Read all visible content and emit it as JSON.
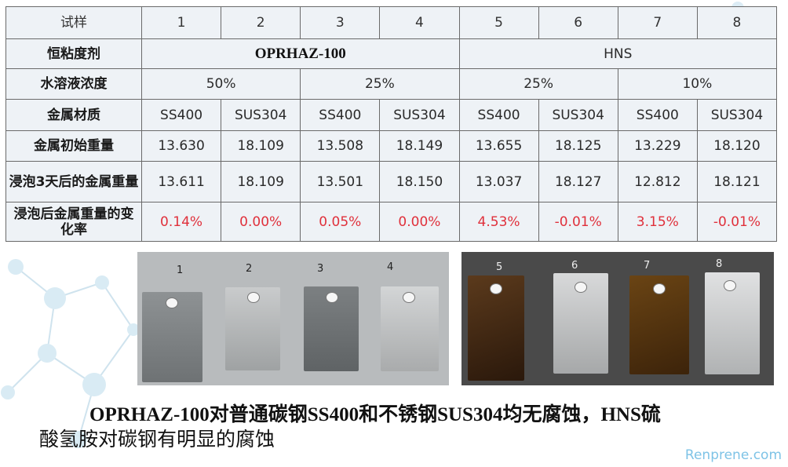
{
  "table": {
    "header": {
      "label": "试样",
      "samples": [
        "1",
        "2",
        "3",
        "4",
        "5",
        "6",
        "7",
        "8"
      ]
    },
    "thickener": {
      "label": "恒粘度剂",
      "product_a": "OPRHAZ-100",
      "product_b": "HNS"
    },
    "concentration": {
      "label": "水溶液浓度",
      "values": [
        "50%",
        "25%",
        "25%",
        "10%"
      ]
    },
    "material": {
      "label": "金属材质",
      "values": [
        "SS400",
        "SUS304",
        "SS400",
        "SUS304",
        "SS400",
        "SUS304",
        "SS400",
        "SUS304"
      ]
    },
    "initial_weight": {
      "label": "金属初始重量",
      "values": [
        "13.630",
        "18.109",
        "13.508",
        "18.149",
        "13.655",
        "18.125",
        "13.229",
        "18.120"
      ]
    },
    "after_weight": {
      "label": "浸泡3天后的金属重量",
      "values": [
        "13.611",
        "18.109",
        "13.501",
        "18.150",
        "13.037",
        "18.127",
        "12.812",
        "18.121"
      ]
    },
    "change_rate": {
      "label": "浸泡后金属重量的变化率",
      "values": [
        "0.14%",
        "0.00%",
        "0.05%",
        "0.00%",
        "4.53%",
        "-0.01%",
        "3.15%",
        "-0.01%"
      ]
    }
  },
  "photos": {
    "left_labels": [
      "1",
      "2",
      "3",
      "4"
    ],
    "right_labels": [
      "5",
      "6",
      "7",
      "8"
    ]
  },
  "caption": {
    "line1": "OPRHAZ-100对普通碳钢SS400和不锈钢SUS304均无腐蚀，HNS硫",
    "line2": "酸氢胺对碳钢有明显的腐蚀"
  },
  "watermark": "Renprene.com",
  "colors": {
    "red_value": "#e0303b",
    "table_bg": "#eef2f6",
    "watermark": "#7ec3e6"
  }
}
